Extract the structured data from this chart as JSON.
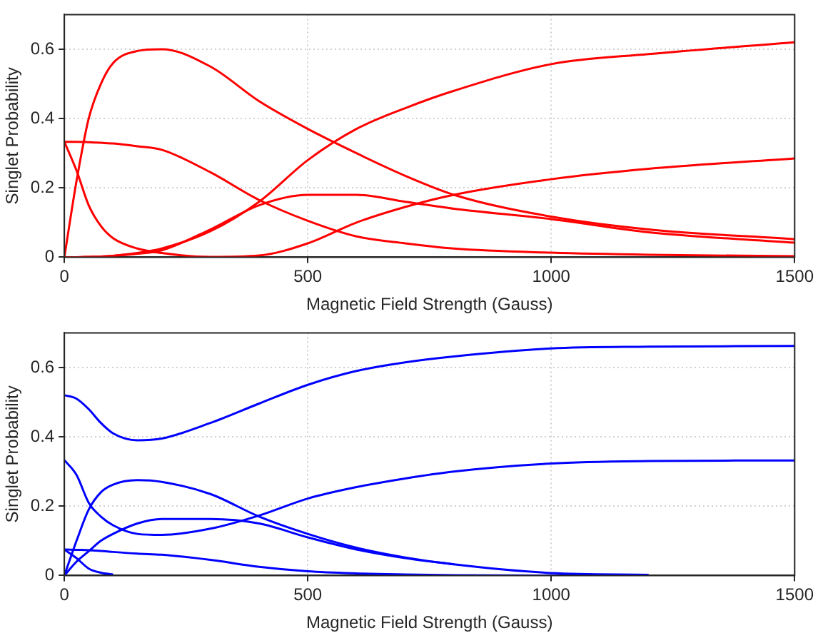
{
  "chart_data": [
    {
      "type": "line",
      "xlabel": "Magnetic Field Strength (Gauss)",
      "ylabel": "Singlet Probability",
      "x": [
        0,
        25,
        50,
        75,
        100,
        150,
        200,
        300,
        400,
        500,
        600,
        700,
        800,
        1000,
        1200,
        1500
      ],
      "xlim": [
        0,
        1500
      ],
      "xticks": [
        0,
        500,
        1000,
        1500
      ],
      "ylim": [
        0,
        0.7
      ],
      "yticks": [
        0,
        0.2,
        0.4,
        0.6
      ],
      "grid": true,
      "legend": false,
      "marker": "none",
      "line_style": "solid",
      "series": [
        {
          "color": "#ff0000",
          "values": [
            0,
            0.22,
            0.4,
            0.5,
            0.56,
            0.595,
            0.6,
            0.55,
            0.45,
            0.37,
            0.3,
            0.235,
            0.18,
            0.117,
            0.08,
            0.052
          ]
        },
        {
          "color": "#ff0000",
          "values": [
            0.333,
            0.333,
            0.332,
            0.33,
            0.328,
            0.32,
            0.31,
            0.245,
            0.165,
            0.105,
            0.06,
            0.04,
            0.025,
            0.013,
            0.007,
            0.003
          ]
        },
        {
          "color": "#ff0000",
          "values": [
            0.333,
            0.25,
            0.15,
            0.09,
            0.055,
            0.025,
            0.012,
            0.001,
            0.005,
            0.04,
            0.1,
            0.145,
            0.18,
            0.225,
            0.255,
            0.285
          ]
        },
        {
          "color": "#ff0000",
          "values": [
            0,
            0,
            0.001,
            0.002,
            0.004,
            0.012,
            0.025,
            0.075,
            0.16,
            0.28,
            0.37,
            0.43,
            0.48,
            0.557,
            0.586,
            0.62
          ]
        },
        {
          "color": "#ff0000",
          "values": [
            0,
            0,
            0.001,
            0.002,
            0.004,
            0.01,
            0.02,
            0.08,
            0.15,
            0.18,
            0.18,
            0.16,
            0.14,
            0.11,
            0.072,
            0.042
          ]
        }
      ]
    },
    {
      "type": "line",
      "xlabel": "Magnetic Field Strength (Gauss)",
      "ylabel": "Singlet Probability",
      "x": [
        0,
        25,
        50,
        75,
        100,
        150,
        200,
        300,
        400,
        500,
        600,
        700,
        800,
        1000,
        1200,
        1500
      ],
      "xlim": [
        0,
        1500
      ],
      "xticks": [
        0,
        500,
        1000,
        1500
      ],
      "ylim": [
        0,
        0.7
      ],
      "yticks": [
        0,
        0.2,
        0.4,
        0.6
      ],
      "grid": true,
      "legend": false,
      "marker": "none",
      "line_style": "solid",
      "series": [
        {
          "color": "#0000ff",
          "values": [
            0.52,
            0.51,
            0.48,
            0.44,
            0.41,
            0.39,
            0.395,
            0.44,
            0.496,
            0.55,
            0.59,
            0.615,
            0.632,
            0.655,
            0.66,
            0.662
          ]
        },
        {
          "color": "#0000ff",
          "values": [
            0.333,
            0.29,
            0.21,
            0.17,
            0.145,
            0.12,
            0.117,
            0.135,
            0.173,
            0.222,
            0.255,
            0.28,
            0.3,
            0.323,
            0.33,
            0.332
          ]
        },
        {
          "color": "#0000ff",
          "values": [
            0,
            0.1,
            0.19,
            0.24,
            0.262,
            0.275,
            0.27,
            0.235,
            0.17,
            0.12,
            0.08,
            0.052,
            0.032,
            0.007,
            0.002,
            null
          ]
        },
        {
          "color": "#0000ff",
          "values": [
            0,
            0.04,
            0.07,
            0.1,
            0.12,
            0.15,
            0.163,
            0.163,
            0.15,
            0.11,
            0.075,
            0.05,
            0.032,
            null,
            null,
            null
          ]
        },
        {
          "color": "#0000ff",
          "values": [
            0.075,
            0.074,
            0.073,
            0.071,
            0.068,
            0.063,
            0.06,
            0.045,
            0.025,
            0.012,
            0.006,
            0.003,
            0.001,
            0,
            0,
            null
          ]
        },
        {
          "color": "#0000ff",
          "values": [
            0.075,
            0.05,
            0.02,
            0.008,
            0.003,
            null,
            null,
            null,
            null,
            null,
            null,
            null,
            null,
            null,
            null,
            null
          ]
        }
      ]
    }
  ]
}
